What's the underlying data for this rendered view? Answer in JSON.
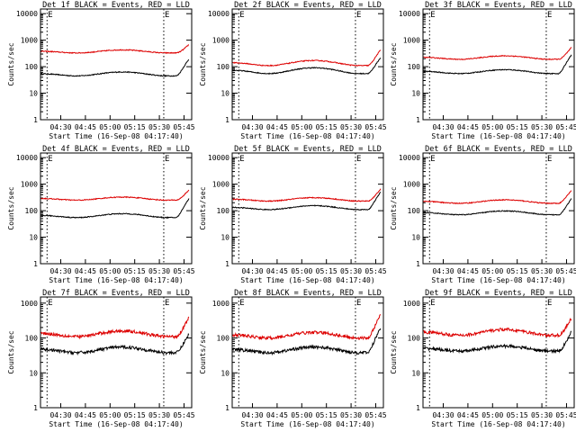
{
  "colors": {
    "events": "#000000",
    "lld": "#dd0000",
    "background": "#ffffff"
  },
  "chart_data": [
    {
      "type": "line",
      "title": "Det 1f BLACK = Events, RED = LLD",
      "ylabel": "Counts/sec",
      "xlabel": "Start Time (16-Sep-08 04:17:40)",
      "xticks": [
        "04:30",
        "04:45",
        "05:00",
        "05:15",
        "05:30",
        "05:45"
      ],
      "yticks": [
        "1",
        "10",
        "100",
        "1000",
        "10000"
      ],
      "ylim": [
        1,
        15000
      ],
      "xlim_min": [
        4,
        75
      ],
      "marker_label": "E",
      "series": [
        {
          "name": "Events",
          "color": "#000000",
          "base": 45,
          "amp": 0.4,
          "end": 190
        },
        {
          "name": "LLD",
          "color": "#dd0000",
          "base": 330,
          "amp": 0.3,
          "end": 680
        }
      ]
    },
    {
      "type": "line",
      "title": "Det 2f BLACK = Events, RED = LLD",
      "ylabel": "Counts/sec",
      "xlabel": "Start Time (16-Sep-08 04:17:40)",
      "xticks": [
        "04:30",
        "04:45",
        "05:00",
        "05:15",
        "05:30",
        "05:45"
      ],
      "yticks": [
        "1",
        "10",
        "100",
        "1000",
        "10000"
      ],
      "ylim": [
        1,
        15000
      ],
      "xlim_min": [
        4,
        75
      ],
      "marker_label": "E",
      "series": [
        {
          "name": "Events",
          "color": "#000000",
          "base": 55,
          "amp": 0.65,
          "end": 220
        },
        {
          "name": "LLD",
          "color": "#dd0000",
          "base": 110,
          "amp": 0.55,
          "end": 430
        }
      ]
    },
    {
      "type": "line",
      "title": "Det 3f BLACK = Events, RED = LLD",
      "ylabel": "Counts/sec",
      "xlabel": "Start Time (16-Sep-08 04:17:40)",
      "xticks": [
        "04:30",
        "04:45",
        "05:00",
        "05:15",
        "05:30",
        "05:45"
      ],
      "yticks": [
        "1",
        "10",
        "100",
        "1000",
        "10000"
      ],
      "ylim": [
        1,
        15000
      ],
      "xlim_min": [
        4,
        75
      ],
      "marker_label": "E",
      "series": [
        {
          "name": "Events",
          "color": "#000000",
          "base": 55,
          "amp": 0.4,
          "end": 280
        },
        {
          "name": "LLD",
          "color": "#dd0000",
          "base": 190,
          "amp": 0.35,
          "end": 520
        }
      ]
    },
    {
      "type": "line",
      "title": "Det 4f BLACK = Events, RED = LLD",
      "ylabel": "Counts/sec",
      "xlabel": "Start Time (16-Sep-08 04:17:40)",
      "xticks": [
        "04:30",
        "04:45",
        "05:00",
        "05:15",
        "05:30",
        "05:45"
      ],
      "yticks": [
        "1",
        "10",
        "100",
        "1000",
        "10000"
      ],
      "ylim": [
        1,
        15000
      ],
      "xlim_min": [
        4,
        75
      ],
      "marker_label": "E",
      "series": [
        {
          "name": "Events",
          "color": "#000000",
          "base": 55,
          "amp": 0.4,
          "end": 280
        },
        {
          "name": "LLD",
          "color": "#dd0000",
          "base": 250,
          "amp": 0.3,
          "end": 600
        }
      ]
    },
    {
      "type": "line",
      "title": "Det 5f BLACK = Events, RED = LLD",
      "ylabel": "Counts/sec",
      "xlabel": "Start Time (16-Sep-08 04:17:40)",
      "xticks": [
        "04:30",
        "04:45",
        "05:00",
        "05:15",
        "05:30",
        "05:45"
      ],
      "yticks": [
        "1",
        "10",
        "100",
        "1000",
        "10000"
      ],
      "ylim": [
        1,
        15000
      ],
      "xlim_min": [
        4,
        75
      ],
      "marker_label": "E",
      "series": [
        {
          "name": "Events",
          "color": "#000000",
          "base": 110,
          "amp": 0.4,
          "end": 500
        },
        {
          "name": "LLD",
          "color": "#dd0000",
          "base": 230,
          "amp": 0.35,
          "end": 650
        }
      ]
    },
    {
      "type": "line",
      "title": "Det 6f BLACK = Events, RED = LLD",
      "ylabel": "Counts/sec",
      "xlabel": "Start Time (16-Sep-08 04:17:40)",
      "xticks": [
        "04:30",
        "04:45",
        "05:00",
        "05:15",
        "05:30",
        "05:45"
      ],
      "yticks": [
        "1",
        "10",
        "100",
        "1000",
        "10000"
      ],
      "ylim": [
        1,
        15000
      ],
      "xlim_min": [
        4,
        75
      ],
      "marker_label": "E",
      "series": [
        {
          "name": "Events",
          "color": "#000000",
          "base": 70,
          "amp": 0.4,
          "end": 280
        },
        {
          "name": "LLD",
          "color": "#dd0000",
          "base": 190,
          "amp": 0.35,
          "end": 580
        }
      ]
    },
    {
      "type": "line",
      "title": "Det 7f BLACK = Events, RED = LLD",
      "ylabel": "Counts/sec",
      "xlabel": "Start Time (16-Sep-08 04:17:40)",
      "xticks": [
        "04:30",
        "04:45",
        "05:00",
        "05:15",
        "05:30",
        "05:45"
      ],
      "yticks": [
        "1",
        "10",
        "100",
        "1000"
      ],
      "ylim": [
        1,
        1500
      ],
      "xlim_min": [
        4,
        75
      ],
      "marker_label": "E",
      "series": [
        {
          "name": "Events",
          "color": "#000000",
          "base": 38,
          "amp": 0.45,
          "end": 130
        },
        {
          "name": "LLD",
          "color": "#dd0000",
          "base": 110,
          "amp": 0.45,
          "end": 380
        }
      ]
    },
    {
      "type": "line",
      "title": "Det 8f BLACK = Events, RED = LLD",
      "ylabel": "Counts/sec",
      "xlabel": "Start Time (16-Sep-08 04:17:40)",
      "xticks": [
        "04:30",
        "04:45",
        "05:00",
        "05:15",
        "05:30",
        "05:45"
      ],
      "yticks": [
        "1",
        "10",
        "100",
        "1000"
      ],
      "ylim": [
        1,
        1500
      ],
      "xlim_min": [
        4,
        75
      ],
      "marker_label": "E",
      "series": [
        {
          "name": "Events",
          "color": "#000000",
          "base": 38,
          "amp": 0.45,
          "end": 200
        },
        {
          "name": "LLD",
          "color": "#dd0000",
          "base": 100,
          "amp": 0.45,
          "end": 470
        }
      ]
    },
    {
      "type": "line",
      "title": "Det 9f BLACK = Events, RED = LLD",
      "ylabel": "Counts/sec",
      "xlabel": "Start Time (16-Sep-08 04:17:40)",
      "xticks": [
        "04:30",
        "04:45",
        "05:00",
        "05:15",
        "05:30",
        "05:45"
      ],
      "yticks": [
        "1",
        "10",
        "100",
        "1000"
      ],
      "ylim": [
        1,
        1500
      ],
      "xlim_min": [
        4,
        75
      ],
      "marker_label": "E",
      "series": [
        {
          "name": "Events",
          "color": "#000000",
          "base": 42,
          "amp": 0.4,
          "end": 150
        },
        {
          "name": "LLD",
          "color": "#dd0000",
          "base": 120,
          "amp": 0.45,
          "end": 360
        }
      ]
    }
  ]
}
